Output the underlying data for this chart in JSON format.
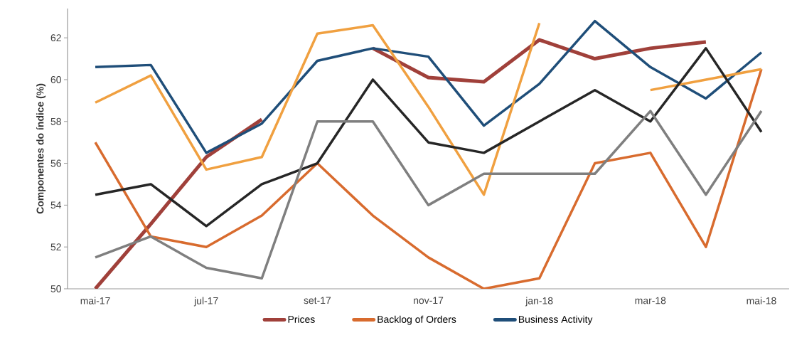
{
  "chart_data": {
    "type": "line",
    "ylabel": "Componentes do índice (%)",
    "categories": [
      "mai-17",
      null,
      "jul-17",
      null,
      "set-17",
      null,
      "nov-17",
      null,
      "jan-18",
      null,
      "mar-18",
      null,
      "mai-18"
    ],
    "ylim": [
      50,
      63.4
    ],
    "yticks": [
      50,
      52,
      54,
      56,
      58,
      60,
      62
    ],
    "grid": false,
    "legend": "bottom",
    "marker": "none",
    "line_style": "solid",
    "series": [
      {
        "name": "Prices",
        "color": "#a0403a",
        "values": [
          50.0,
          53.1,
          56.3,
          58.1,
          null,
          61.5,
          60.1,
          59.9,
          61.9,
          61.0,
          61.5,
          61.8,
          null
        ]
      },
      {
        "name": "Backlog of Orders",
        "color": "#d86b2e",
        "values": [
          57.0,
          52.5,
          52.0,
          53.5,
          56.0,
          53.5,
          51.5,
          50.0,
          50.5,
          56.0,
          56.5,
          52.0,
          60.5
        ]
      },
      {
        "name": "Business Activity",
        "color": "#1f4e79",
        "values": [
          60.6,
          60.7,
          56.5,
          57.9,
          60.9,
          61.5,
          61.1,
          57.8,
          59.8,
          62.8,
          60.6,
          59.1,
          61.3
        ]
      },
      {
        "color": "#f0a040",
        "values": [
          58.9,
          60.2,
          55.7,
          56.3,
          62.2,
          62.6,
          58.7,
          54.5,
          62.7,
          null,
          59.5,
          60.0,
          60.5
        ]
      },
      {
        "color": "#262626",
        "values": [
          54.5,
          55.0,
          53.0,
          55.0,
          56.0,
          60.0,
          57.0,
          56.5,
          58.0,
          59.5,
          58.0,
          61.5,
          57.5
        ]
      },
      {
        "color": "#7f7f7f",
        "values": [
          51.5,
          52.5,
          51.0,
          50.5,
          58.0,
          58.0,
          54.0,
          55.5,
          55.5,
          55.5,
          58.5,
          54.5,
          58.5
        ]
      }
    ]
  }
}
